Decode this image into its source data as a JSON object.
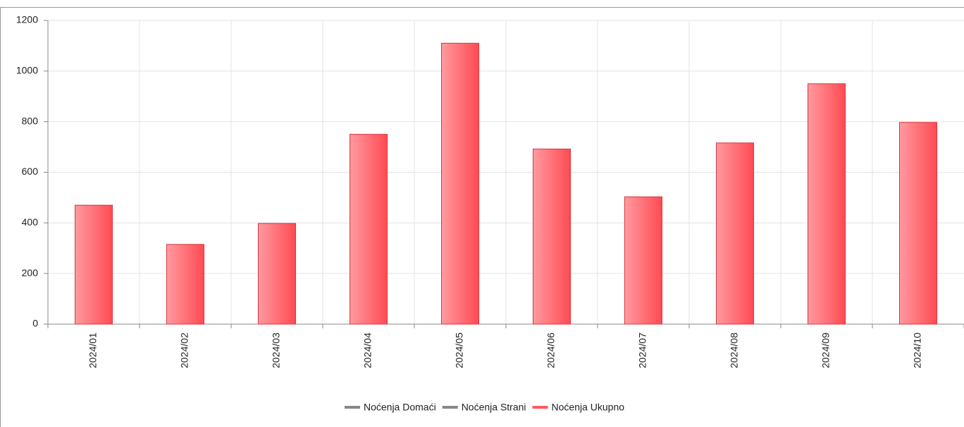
{
  "chart_data": {
    "type": "bar",
    "categories": [
      "2024/01",
      "2024/02",
      "2024/03",
      "2024/04",
      "2024/05",
      "2024/06",
      "2024/07",
      "2024/08",
      "2024/09",
      "2024/10"
    ],
    "series": [
      {
        "name": "Noćenja Domaći",
        "color": "#888888",
        "visible": false
      },
      {
        "name": "Noćenja Strani",
        "color": "#888888",
        "visible": false
      },
      {
        "name": "Noćenja Ukupno",
        "color": "#ff5a60",
        "visible": true,
        "values": [
          470,
          315,
          398,
          750,
          1110,
          692,
          503,
          716,
          950,
          797
        ]
      }
    ],
    "ylim": [
      0,
      1200
    ],
    "yticks": [
      0,
      200,
      400,
      600,
      800,
      1000,
      1200
    ],
    "grid": true
  }
}
